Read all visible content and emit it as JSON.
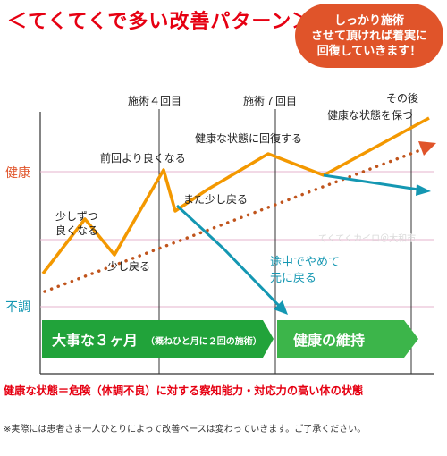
{
  "title": "＜てくてくで多い改善パターン＞",
  "bubble": {
    "line1": "しっかり施術",
    "line2": "させて頂ければ着実に",
    "line3": "回復していきます！"
  },
  "axis": {
    "health_label": "健康",
    "unwell_label": "不調"
  },
  "milestones": {
    "session4": "施術４回目",
    "session7": "施術７回目",
    "after": "その後"
  },
  "annotations": {
    "slightly_better": [
      "少しずつ",
      "良くなる"
    ],
    "slightly_back": "少し戻る",
    "better_than_before": "前回より良くなる",
    "back_again": "また少し戻る",
    "recover_health": "健康な状態に回復する",
    "keep_health": "健康な状態を保つ",
    "quit_midway": [
      "途中でやめて",
      "元に戻る"
    ]
  },
  "arrows": {
    "phase1_main": "大事な３ヶ月",
    "phase1_sub": "（概ねひと月に２回の施術）",
    "phase2": "健康の維持"
  },
  "watermark": "てくてくカイロ＠大和市",
  "footer": {
    "definition": "健康な状態＝危険（体調不良）に対する察知能力・対応力の高い体の状態",
    "note": "※実際には患者さま一人ひとりによって改善ペースは変わっていきます。ご了承ください。"
  },
  "colors": {
    "title_red": "#e60012",
    "orange": "#f39800",
    "teal": "#1497b2",
    "brown_dots": "#c0541c",
    "green": "#21a33a",
    "bubble": "#e0542a",
    "guide_pink": "#e6b3cc"
  }
}
